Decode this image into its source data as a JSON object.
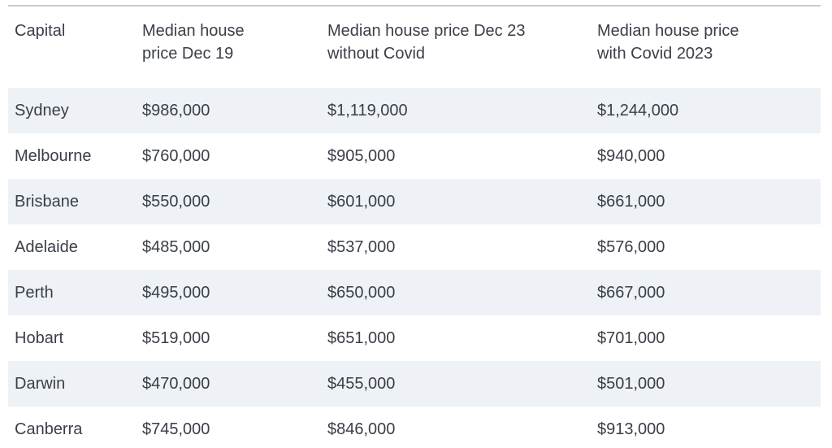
{
  "chart_data": {
    "type": "table",
    "columns": [
      "Capital",
      "Median house price Dec 19",
      "Median house price Dec 23 without Covid",
      "Median house price with Covid 2023"
    ],
    "column_lines": [
      [
        "Capital"
      ],
      [
        "Median house",
        "price Dec 19"
      ],
      [
        "Median house price Dec 23",
        "without Covid"
      ],
      [
        "Median house price",
        "with Covid 2023"
      ]
    ],
    "rows": [
      [
        "Sydney",
        "$986,000",
        "$1,119,000",
        "$1,244,000"
      ],
      [
        "Melbourne",
        "$760,000",
        "$905,000",
        "$940,000"
      ],
      [
        "Brisbane",
        "$550,000",
        "$601,000",
        "$661,000"
      ],
      [
        "Adelaide",
        "$485,000",
        "$537,000",
        "$576,000"
      ],
      [
        "Perth",
        "$495,000",
        "$650,000",
        "$667,000"
      ],
      [
        "Hobart",
        "$519,000",
        "$651,000",
        "$701,000"
      ],
      [
        "Darwin",
        "$470,000",
        "$455,000",
        "$501,000"
      ],
      [
        "Canberra",
        "$745,000",
        "$846,000",
        "$913,000"
      ]
    ],
    "layout": {
      "zebra_shaded_row_indexes": [
        0,
        2,
        4,
        6
      ],
      "grid": "horizontal rules top and bottom only"
    }
  },
  "colors": {
    "background": "#ffffff",
    "row_shade": "#eef1f6",
    "border": "#c6cbd2",
    "text": "#3a3e48"
  }
}
